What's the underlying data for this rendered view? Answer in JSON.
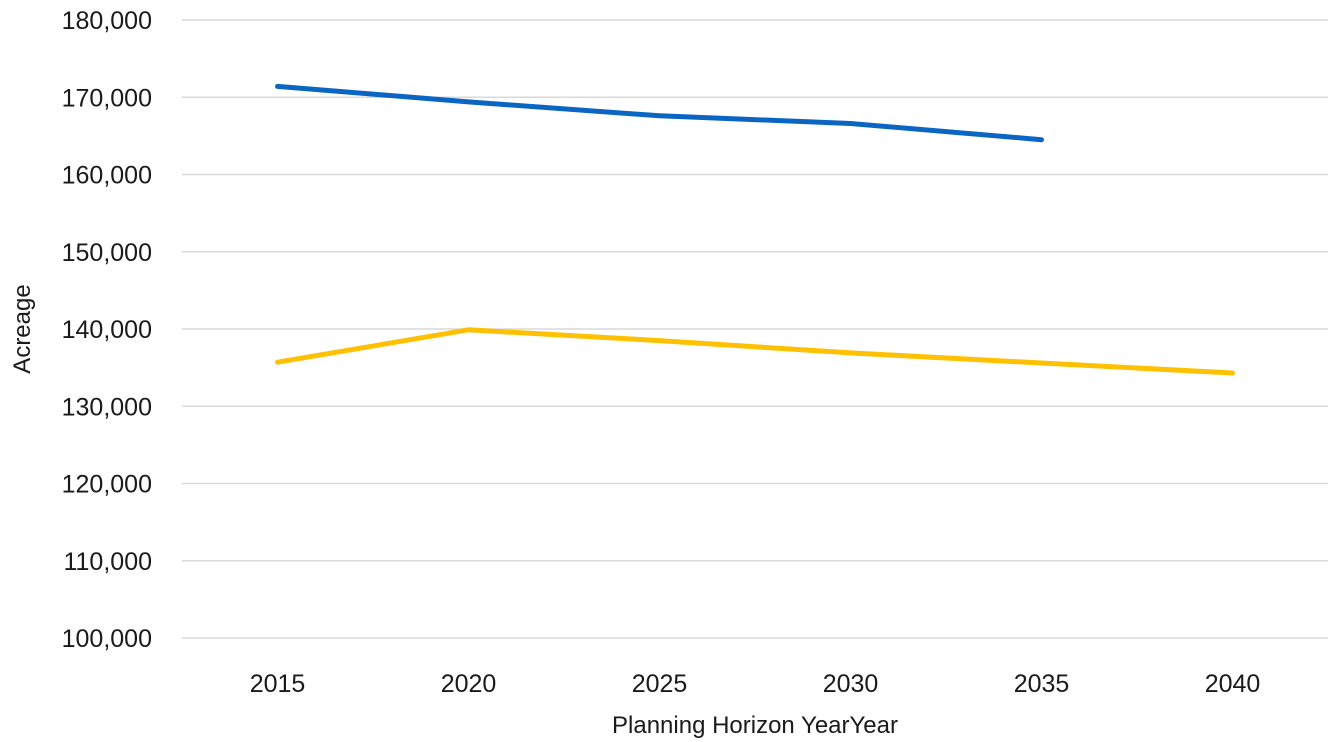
{
  "chart_data": {
    "type": "line",
    "title": "",
    "xlabel": "Planning Horizon YearYear",
    "ylabel": "Acreage",
    "categories": [
      "2015",
      "2020",
      "2025",
      "2030",
      "2035",
      "2040"
    ],
    "ylim": [
      100000,
      180000
    ],
    "yticks": [
      100000,
      110000,
      120000,
      130000,
      140000,
      150000,
      160000,
      170000,
      180000
    ],
    "ytick_labels": [
      "100,000",
      "110,000",
      "120,000",
      "130,000",
      "140,000",
      "150,000",
      "160,000",
      "170,000",
      "180,000"
    ],
    "grid": true,
    "legend": "none",
    "series": [
      {
        "color": "#0a66c2",
        "values": [
          171400,
          169400,
          167600,
          166600,
          164500,
          null
        ]
      },
      {
        "color": "#ffc000",
        "values": [
          135700,
          139900,
          138500,
          136900,
          135600,
          134300
        ]
      }
    ]
  }
}
